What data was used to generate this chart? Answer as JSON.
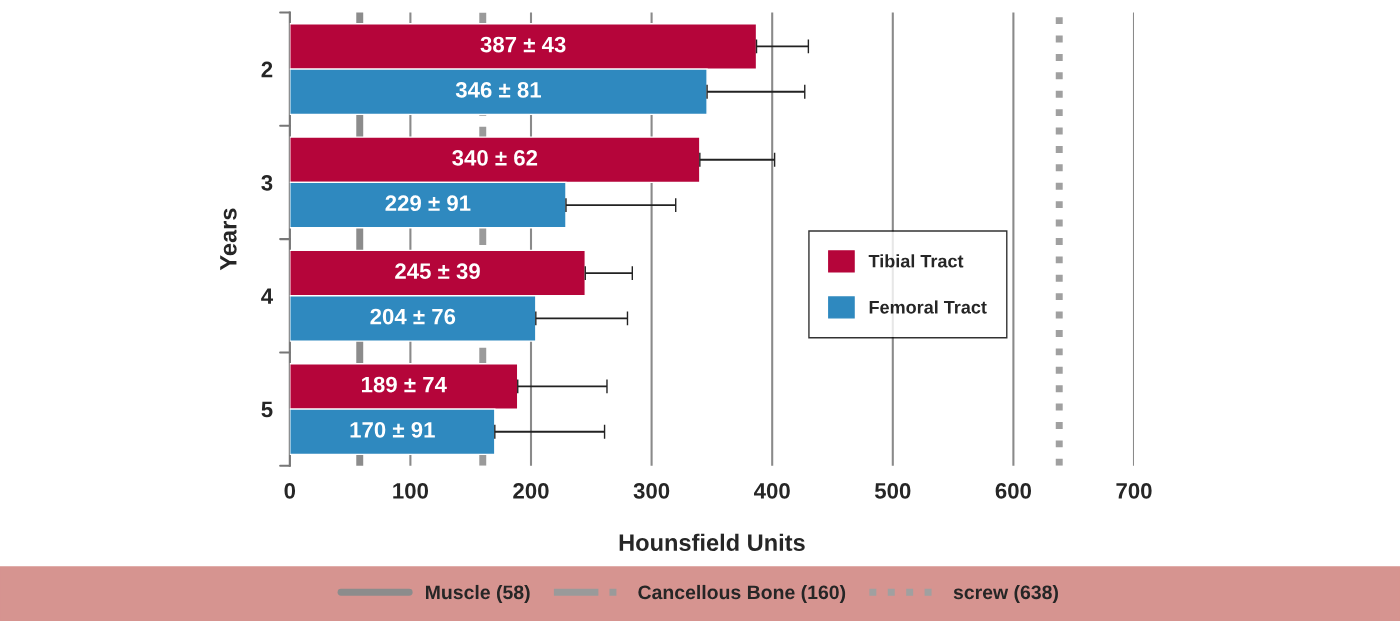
{
  "chart_data": {
    "type": "bar",
    "orientation": "horizontal",
    "xlabel": "Hounsfield Units",
    "ylabel": "Years",
    "categories": [
      "2",
      "3",
      "4",
      "5"
    ],
    "series": [
      {
        "name": "Tibial Tract",
        "color": "#b5053a",
        "values": [
          387,
          340,
          245,
          189
        ],
        "errors": [
          43,
          62,
          39,
          74
        ],
        "value_labels": [
          "387 ± 43",
          "340 ± 62",
          "245 ± 39",
          "189 ± 74"
        ]
      },
      {
        "name": "Femoral Tract",
        "color": "#2f89bf",
        "values": [
          346,
          229,
          204,
          170
        ],
        "errors": [
          81,
          91,
          76,
          91
        ],
        "value_labels": [
          "346 ± 81",
          "229 ± 91",
          "204 ± 76",
          "170 ± 91"
        ]
      }
    ],
    "xlim": [
      0,
      700
    ],
    "xticks": [
      0,
      100,
      200,
      300,
      400,
      500,
      600,
      700
    ],
    "grid": "x",
    "legend": "right",
    "ref_lines": [
      {
        "axis": "x",
        "value": 58,
        "label": "Muscle (58)",
        "color": "#8c8c8c",
        "line_style": "solid"
      },
      {
        "axis": "x",
        "value": 160,
        "label": "Cancellous Bone (160)",
        "color": "#9a9a9a",
        "line_style": "dashdot"
      },
      {
        "axis": "x",
        "value": 638,
        "label": "screw (638)",
        "color": "#a0a0a0",
        "line_style": "dotted"
      }
    ]
  }
}
